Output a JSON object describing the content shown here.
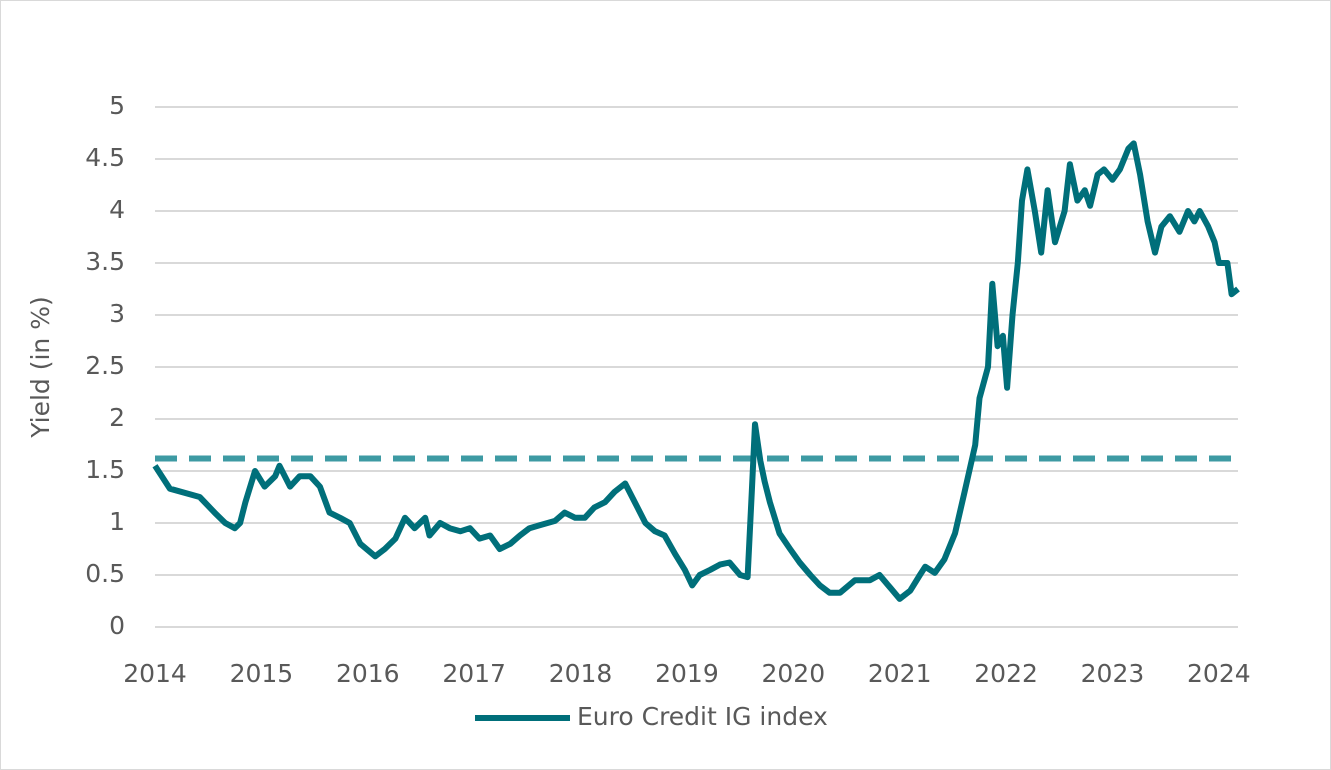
{
  "chart_data": {
    "type": "line",
    "y_label": "Yield (in %)",
    "x": [
      2014.0,
      2014.14,
      2014.42,
      2014.56,
      2014.66,
      2014.75,
      2014.8,
      2014.85,
      2014.94,
      2015.03,
      2015.13,
      2015.17,
      2015.27,
      2015.36,
      2015.46,
      2015.55,
      2015.64,
      2015.74,
      2015.83,
      2015.93,
      2016.07,
      2016.16,
      2016.26,
      2016.35,
      2016.44,
      2016.54,
      2016.58,
      2016.68,
      2016.77,
      2016.87,
      2016.96,
      2017.05,
      2017.15,
      2017.24,
      2017.34,
      2017.43,
      2017.52,
      2017.62,
      2017.76,
      2017.85,
      2017.95,
      2018.04,
      2018.13,
      2018.23,
      2018.32,
      2018.42,
      2018.51,
      2018.61,
      2018.7,
      2018.79,
      2018.89,
      2018.98,
      2019.05,
      2019.12,
      2019.22,
      2019.31,
      2019.4,
      2019.5,
      2019.57,
      2019.61,
      2019.64,
      2019.69,
      2019.73,
      2019.78,
      2019.87,
      2019.97,
      2020.06,
      2020.16,
      2020.25,
      2020.34,
      2020.44,
      2020.58,
      2020.72,
      2020.81,
      2020.91,
      2021.0,
      2021.1,
      2021.19,
      2021.24,
      2021.33,
      2021.42,
      2021.52,
      2021.61,
      2021.71,
      2021.75,
      2021.83,
      2021.87,
      2021.92,
      2021.97,
      2022.01,
      2022.06,
      2022.11,
      2022.15,
      2022.2,
      2022.27,
      2022.33,
      2022.39,
      2022.46,
      2022.55,
      2022.6,
      2022.67,
      2022.74,
      2022.79,
      2022.86,
      2022.92,
      2023.0,
      2023.07,
      2023.15,
      2023.2,
      2023.26,
      2023.33,
      2023.4,
      2023.46,
      2023.54,
      2023.63,
      2023.71,
      2023.77,
      2023.82,
      2023.9,
      2023.96,
      2024.0,
      2024.08,
      2024.12,
      2024.18
    ],
    "series": [
      {
        "name": "Euro Credit IG index",
        "color": "#006f7a",
        "values": [
          1.55,
          1.33,
          1.25,
          1.1,
          1.0,
          0.95,
          1.0,
          1.2,
          1.5,
          1.35,
          1.45,
          1.55,
          1.35,
          1.45,
          1.45,
          1.35,
          1.1,
          1.05,
          1.0,
          0.8,
          0.68,
          0.75,
          0.85,
          1.05,
          0.95,
          1.05,
          0.88,
          1.0,
          0.95,
          0.92,
          0.95,
          0.85,
          0.88,
          0.75,
          0.8,
          0.88,
          0.95,
          0.98,
          1.02,
          1.1,
          1.05,
          1.05,
          1.15,
          1.2,
          1.3,
          1.38,
          1.2,
          1.0,
          0.92,
          0.88,
          0.7,
          0.55,
          0.4,
          0.5,
          0.55,
          0.6,
          0.62,
          0.5,
          0.48,
          1.3,
          1.95,
          1.6,
          1.4,
          1.2,
          0.9,
          0.75,
          0.62,
          0.5,
          0.4,
          0.33,
          0.33,
          0.45,
          0.45,
          0.5,
          0.38,
          0.27,
          0.35,
          0.5,
          0.58,
          0.52,
          0.65,
          0.9,
          1.3,
          1.75,
          2.2,
          2.5,
          3.3,
          2.7,
          2.8,
          2.3,
          3.0,
          3.5,
          4.1,
          4.4,
          4.0,
          3.6,
          4.2,
          3.7,
          4.0,
          4.45,
          4.1,
          4.2,
          4.05,
          4.35,
          4.4,
          4.3,
          4.4,
          4.6,
          4.65,
          4.35,
          3.9,
          3.6,
          3.85,
          3.95,
          3.8,
          4.0,
          3.9,
          4.0,
          3.85,
          3.7,
          3.5,
          3.5,
          3.2,
          3.25
        ]
      }
    ],
    "reference_line": {
      "value": 1.62,
      "color": "#3d9aa3"
    },
    "xlim": [
      2014,
      2024.18
    ],
    "xticks": [
      2014,
      2015,
      2016,
      2017,
      2018,
      2019,
      2020,
      2021,
      2022,
      2023,
      2024
    ],
    "ylim": [
      0,
      5
    ],
    "yticks": [
      0,
      0.5,
      1,
      1.5,
      2,
      2.5,
      3,
      3.5,
      4,
      4.5,
      5
    ],
    "grid": true,
    "legend": "bottom"
  }
}
